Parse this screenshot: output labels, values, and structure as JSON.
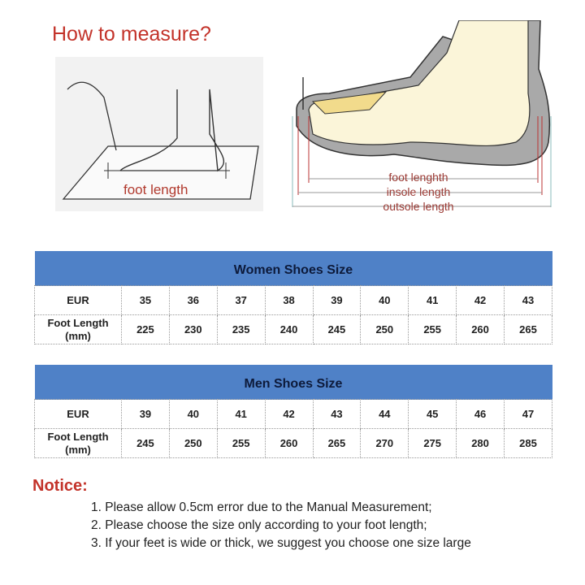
{
  "title": "How to measure?",
  "illustration_left": {
    "label": "foot length"
  },
  "illustration_right": {
    "labels": [
      "foot lenghth",
      "insole length",
      "outsole length"
    ]
  },
  "women": {
    "title": "Women Shoes Size",
    "row1_label": "EUR",
    "row2_label": "Foot Length (mm)",
    "eur": [
      "35",
      "36",
      "37",
      "38",
      "39",
      "40",
      "41",
      "42",
      "43"
    ],
    "mm": [
      "225",
      "230",
      "235",
      "240",
      "245",
      "250",
      "255",
      "260",
      "265"
    ]
  },
  "men": {
    "title": "Men Shoes Size",
    "row1_label": "EUR",
    "row2_label": "Foot Length (mm)",
    "eur": [
      "39",
      "40",
      "41",
      "42",
      "43",
      "44",
      "45",
      "46",
      "47"
    ],
    "mm": [
      "245",
      "250",
      "255",
      "260",
      "265",
      "270",
      "275",
      "280",
      "285"
    ]
  },
  "notice": {
    "heading": "Notice:",
    "lines": [
      "1. Please allow 0.5cm error due to the Manual Measurement;",
      "2. Please choose the size only according to your foot length;",
      "3. If your feet is wide or thick, we suggest you choose one size large"
    ]
  },
  "colors": {
    "header": "#4f81c7",
    "accent": "#c3332a"
  }
}
